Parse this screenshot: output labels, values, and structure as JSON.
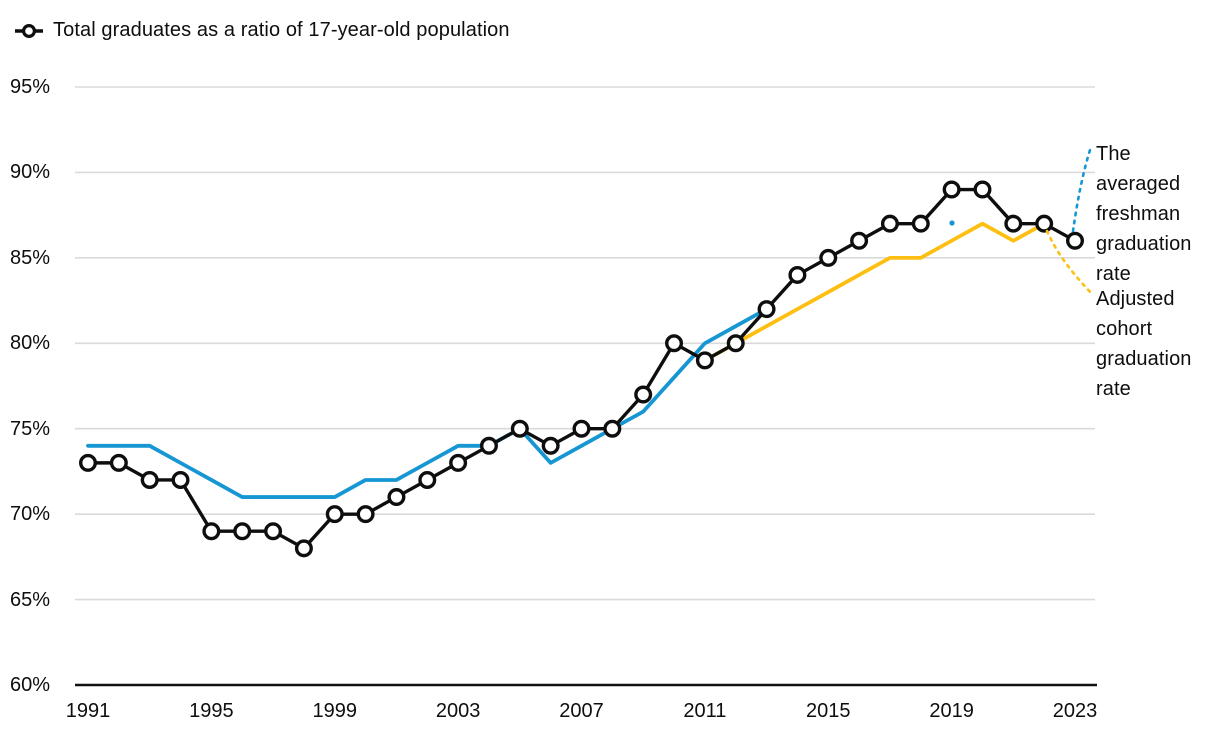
{
  "legend": {
    "label": "Total graduates as a ratio of 17-year-old population"
  },
  "annotations": [
    {
      "id": "afgr",
      "text": "The averaged freshman graduation rate",
      "color": "#1696d2"
    },
    {
      "id": "acgr",
      "text": "Adjusted cohort graduation rate",
      "color": "#fdbf11"
    }
  ],
  "colors": {
    "black_series": "#0e0e0e",
    "blue_series": "#1696d2",
    "yellow_series": "#fdbf11",
    "gridline": "#dadada",
    "axis": "#111111",
    "marker_fill": "#ffffff"
  },
  "chart_data": {
    "type": "line",
    "title": "Total graduates as a ratio of 17-year-old population",
    "xlabel": "",
    "ylabel": "",
    "x_range": [
      1991,
      2023
    ],
    "ylim": [
      60,
      95
    ],
    "grid": true,
    "legend_position": "top-left",
    "yticks": [
      {
        "value": 60,
        "label": "60%"
      },
      {
        "value": 65,
        "label": "65%"
      },
      {
        "value": 70,
        "label": "70%"
      },
      {
        "value": 75,
        "label": "75%"
      },
      {
        "value": 80,
        "label": "80%"
      },
      {
        "value": 85,
        "label": "85%"
      },
      {
        "value": 90,
        "label": "90%"
      },
      {
        "value": 95,
        "label": "95%"
      }
    ],
    "xticks": [
      1991,
      1995,
      1999,
      2003,
      2007,
      2011,
      2015,
      2019,
      2023
    ],
    "series": [
      {
        "name": "The averaged freshman graduation rate",
        "color": "#1696d2",
        "marker": "none",
        "start_year": 1991,
        "values": [
          74,
          74,
          74,
          73,
          72,
          71,
          71,
          71,
          71,
          72,
          72,
          73,
          74,
          74,
          75,
          73,
          74,
          75,
          76,
          78,
          80,
          81,
          82
        ]
      },
      {
        "name": "Adjusted cohort graduation rate",
        "color": "#fdbf11",
        "marker": "none",
        "start_year": 2011,
        "values": [
          79,
          80,
          81,
          82,
          83,
          84,
          85,
          85,
          86,
          87,
          86,
          87
        ]
      },
      {
        "name": "Total graduates as a ratio of 17-year-old population",
        "color": "#0e0e0e",
        "marker": "circle",
        "start_year": 1991,
        "values": [
          73,
          73,
          72,
          72,
          69,
          69,
          69,
          68,
          70,
          70,
          71,
          72,
          73,
          74,
          75,
          74,
          75,
          75,
          77,
          80,
          79,
          80,
          82,
          84,
          85,
          86,
          87,
          87,
          89,
          89,
          87,
          87,
          86
        ]
      }
    ]
  }
}
